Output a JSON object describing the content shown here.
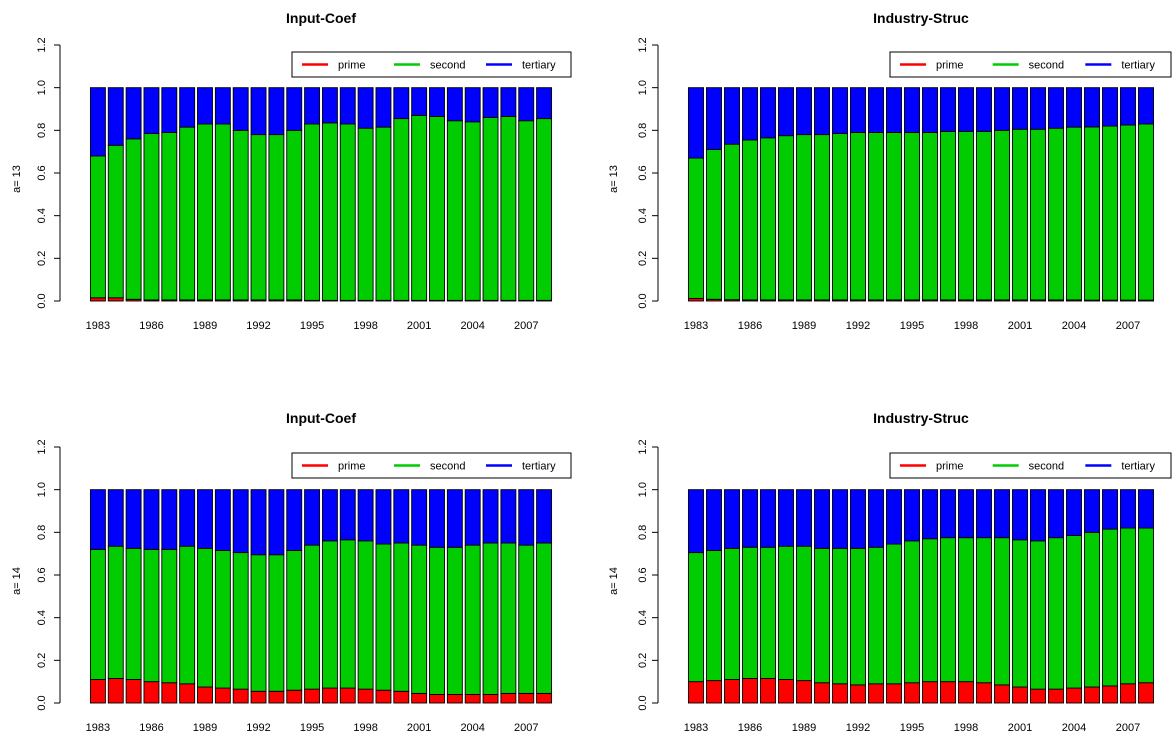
{
  "chart_data": [
    {
      "type": "bar",
      "stacked": true,
      "title": "Input-Coef",
      "ylabel": "a= 13",
      "ylim": [
        0,
        1.2
      ],
      "yticks": [
        "0.0",
        "0.2",
        "0.4",
        "0.6",
        "0.8",
        "1.0",
        "1.2"
      ],
      "categories": [
        "1983",
        "1984",
        "1985",
        "1986",
        "1987",
        "1988",
        "1989",
        "1990",
        "1991",
        "1992",
        "1993",
        "1994",
        "1995",
        "1996",
        "1997",
        "1998",
        "1999",
        "2000",
        "2001",
        "2002",
        "2003",
        "2004",
        "2005",
        "2006",
        "2007",
        "2008"
      ],
      "xtick_labels": [
        "1983",
        "1986",
        "1989",
        "1992",
        "1995",
        "1998",
        "2001",
        "2004",
        "2007"
      ],
      "legend": {
        "position": "top-right",
        "entries": [
          "prime",
          "second",
          "tertiary"
        ]
      },
      "series": [
        {
          "name": "prime",
          "color": "#ff0000",
          "values": [
            0.015,
            0.015,
            0.008,
            0.005,
            0.005,
            0.005,
            0.005,
            0.005,
            0.005,
            0.005,
            0.005,
            0.005,
            0.003,
            0.003,
            0.003,
            0.003,
            0.003,
            0.003,
            0.003,
            0.003,
            0.003,
            0.003,
            0.003,
            0.003,
            0.003,
            0.003
          ]
        },
        {
          "name": "second",
          "color": "#00cc00",
          "values": [
            0.665,
            0.715,
            0.752,
            0.78,
            0.785,
            0.81,
            0.825,
            0.825,
            0.795,
            0.775,
            0.775,
            0.795,
            0.827,
            0.832,
            0.827,
            0.807,
            0.812,
            0.852,
            0.867,
            0.862,
            0.842,
            0.837,
            0.857,
            0.862,
            0.842,
            0.852
          ]
        },
        {
          "name": "tertiary",
          "color": "#0000ff",
          "values": [
            0.32,
            0.27,
            0.24,
            0.215,
            0.21,
            0.185,
            0.17,
            0.17,
            0.2,
            0.22,
            0.22,
            0.2,
            0.17,
            0.165,
            0.17,
            0.19,
            0.185,
            0.145,
            0.13,
            0.135,
            0.155,
            0.16,
            0.14,
            0.135,
            0.155,
            0.145
          ]
        }
      ]
    },
    {
      "type": "bar",
      "stacked": true,
      "title": "Industry-Struc",
      "ylabel": "a= 13",
      "ylim": [
        0,
        1.2
      ],
      "yticks": [
        "0.0",
        "0.2",
        "0.4",
        "0.6",
        "0.8",
        "1.0",
        "1.2"
      ],
      "categories": [
        "1983",
        "1984",
        "1985",
        "1986",
        "1987",
        "1988",
        "1989",
        "1990",
        "1991",
        "1992",
        "1993",
        "1994",
        "1995",
        "1996",
        "1997",
        "1998",
        "1999",
        "2000",
        "2001",
        "2002",
        "2003",
        "2004",
        "2005",
        "2006",
        "2007",
        "2008"
      ],
      "xtick_labels": [
        "1983",
        "1986",
        "1989",
        "1992",
        "1995",
        "1998",
        "2001",
        "2004",
        "2007"
      ],
      "legend": {
        "position": "top-right",
        "entries": [
          "prime",
          "second",
          "tertiary"
        ]
      },
      "series": [
        {
          "name": "prime",
          "color": "#ff0000",
          "values": [
            0.012,
            0.008,
            0.006,
            0.005,
            0.005,
            0.005,
            0.005,
            0.005,
            0.005,
            0.005,
            0.005,
            0.005,
            0.005,
            0.005,
            0.005,
            0.005,
            0.005,
            0.005,
            0.005,
            0.005,
            0.005,
            0.005,
            0.004,
            0.004,
            0.004,
            0.004
          ]
        },
        {
          "name": "second",
          "color": "#00cc00",
          "values": [
            0.658,
            0.702,
            0.729,
            0.75,
            0.76,
            0.77,
            0.775,
            0.775,
            0.78,
            0.785,
            0.785,
            0.785,
            0.785,
            0.785,
            0.79,
            0.79,
            0.79,
            0.795,
            0.8,
            0.8,
            0.805,
            0.81,
            0.812,
            0.816,
            0.821,
            0.826
          ]
        },
        {
          "name": "tertiary",
          "color": "#0000ff",
          "values": [
            0.33,
            0.29,
            0.265,
            0.245,
            0.235,
            0.225,
            0.22,
            0.22,
            0.215,
            0.21,
            0.21,
            0.21,
            0.21,
            0.21,
            0.205,
            0.205,
            0.205,
            0.2,
            0.195,
            0.195,
            0.19,
            0.185,
            0.184,
            0.18,
            0.175,
            0.17
          ]
        }
      ]
    },
    {
      "type": "bar",
      "stacked": true,
      "title": "Input-Coef",
      "ylabel": "a= 14",
      "ylim": [
        0,
        1.2
      ],
      "yticks": [
        "0.0",
        "0.2",
        "0.4",
        "0.6",
        "0.8",
        "1.0",
        "1.2"
      ],
      "categories": [
        "1983",
        "1984",
        "1985",
        "1986",
        "1987",
        "1988",
        "1989",
        "1990",
        "1991",
        "1992",
        "1993",
        "1994",
        "1995",
        "1996",
        "1997",
        "1998",
        "1999",
        "2000",
        "2001",
        "2002",
        "2003",
        "2004",
        "2005",
        "2006",
        "2007",
        "2008"
      ],
      "xtick_labels": [
        "1983",
        "1986",
        "1989",
        "1992",
        "1995",
        "1998",
        "2001",
        "2004",
        "2007"
      ],
      "legend": {
        "position": "top-right",
        "entries": [
          "prime",
          "second",
          "tertiary"
        ]
      },
      "series": [
        {
          "name": "prime",
          "color": "#ff0000",
          "values": [
            0.11,
            0.115,
            0.11,
            0.1,
            0.095,
            0.09,
            0.075,
            0.07,
            0.065,
            0.055,
            0.055,
            0.06,
            0.065,
            0.07,
            0.07,
            0.065,
            0.06,
            0.055,
            0.045,
            0.04,
            0.04,
            0.04,
            0.04,
            0.045,
            0.045,
            0.045
          ]
        },
        {
          "name": "second",
          "color": "#00cc00",
          "values": [
            0.61,
            0.62,
            0.615,
            0.62,
            0.625,
            0.645,
            0.65,
            0.645,
            0.64,
            0.64,
            0.64,
            0.655,
            0.675,
            0.69,
            0.695,
            0.695,
            0.685,
            0.695,
            0.695,
            0.69,
            0.69,
            0.7,
            0.71,
            0.705,
            0.695,
            0.705
          ]
        },
        {
          "name": "tertiary",
          "color": "#0000ff",
          "values": [
            0.28,
            0.265,
            0.275,
            0.28,
            0.28,
            0.265,
            0.275,
            0.285,
            0.295,
            0.305,
            0.305,
            0.285,
            0.26,
            0.24,
            0.235,
            0.24,
            0.255,
            0.25,
            0.26,
            0.27,
            0.27,
            0.26,
            0.25,
            0.25,
            0.26,
            0.25
          ]
        }
      ]
    },
    {
      "type": "bar",
      "stacked": true,
      "title": "Industry-Struc",
      "ylabel": "a= 14",
      "ylim": [
        0,
        1.2
      ],
      "yticks": [
        "0.0",
        "0.2",
        "0.4",
        "0.6",
        "0.8",
        "1.0",
        "1.2"
      ],
      "categories": [
        "1983",
        "1984",
        "1985",
        "1986",
        "1987",
        "1988",
        "1989",
        "1990",
        "1991",
        "1992",
        "1993",
        "1994",
        "1995",
        "1996",
        "1997",
        "1998",
        "1999",
        "2000",
        "2001",
        "2002",
        "2003",
        "2004",
        "2005",
        "2006",
        "2007",
        "2008"
      ],
      "xtick_labels": [
        "1983",
        "1986",
        "1989",
        "1992",
        "1995",
        "1998",
        "2001",
        "2004",
        "2007"
      ],
      "legend": {
        "position": "top-right",
        "entries": [
          "prime",
          "second",
          "tertiary"
        ]
      },
      "series": [
        {
          "name": "prime",
          "color": "#ff0000",
          "values": [
            0.1,
            0.105,
            0.11,
            0.115,
            0.115,
            0.11,
            0.105,
            0.095,
            0.09,
            0.085,
            0.09,
            0.09,
            0.095,
            0.1,
            0.1,
            0.1,
            0.095,
            0.085,
            0.075,
            0.065,
            0.065,
            0.07,
            0.075,
            0.08,
            0.09,
            0.095
          ]
        },
        {
          "name": "second",
          "color": "#00cc00",
          "values": [
            0.605,
            0.61,
            0.615,
            0.615,
            0.615,
            0.625,
            0.63,
            0.63,
            0.635,
            0.64,
            0.64,
            0.655,
            0.665,
            0.67,
            0.675,
            0.675,
            0.68,
            0.69,
            0.69,
            0.695,
            0.71,
            0.715,
            0.725,
            0.735,
            0.73,
            0.725
          ]
        },
        {
          "name": "tertiary",
          "color": "#0000ff",
          "values": [
            0.295,
            0.285,
            0.275,
            0.27,
            0.27,
            0.265,
            0.265,
            0.275,
            0.275,
            0.275,
            0.27,
            0.255,
            0.24,
            0.23,
            0.225,
            0.225,
            0.225,
            0.225,
            0.235,
            0.24,
            0.225,
            0.215,
            0.2,
            0.185,
            0.18,
            0.18
          ]
        }
      ]
    }
  ]
}
